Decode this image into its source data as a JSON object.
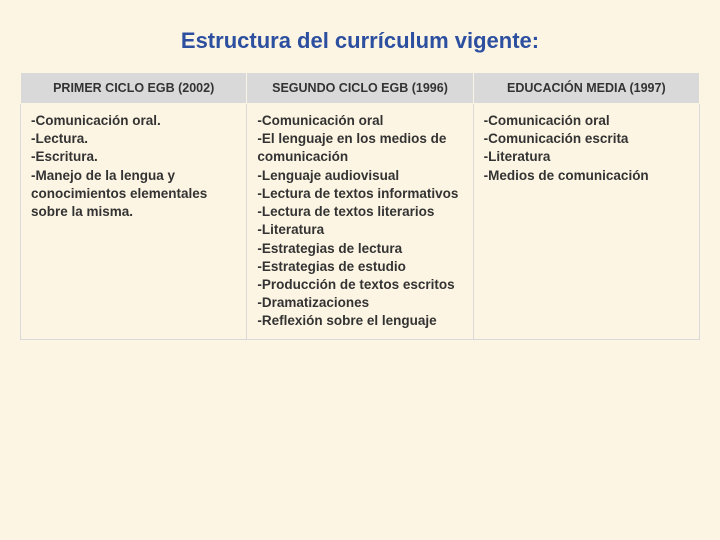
{
  "title": "Estructura del currículum vigente:",
  "table": {
    "type": "table",
    "background_color": "#fdf5e3",
    "header_bg": "#d9d9d9",
    "header_text_color": "#333333",
    "cell_text_color": "#333333",
    "border_color": "#d9d9d9",
    "title_color": "#2d4fa0",
    "title_fontsize": 22,
    "header_fontsize": 12.5,
    "cell_fontsize": 13.5,
    "columns": [
      "PRIMER CICLO EGB (2002)",
      "SEGUNDO CICLO EGB (1996)",
      "EDUCACIÓN MEDIA (1997)"
    ],
    "rows": [
      [
        "-Comunicación oral.\n-Lectura.\n-Escritura.\n-Manejo  de la lengua y conocimientos elementales sobre la misma.",
        "-Comunicación oral\n-El lenguaje en los medios de comunicación\n-Lenguaje audiovisual\n-Lectura de textos informativos\n-Lectura de textos literarios\n-Literatura\n-Estrategias de lectura\n-Estrategias de  estudio\n-Producción de textos escritos\n-Dramatizaciones\n-Reflexión sobre el lenguaje",
        "-Comunicación oral\n-Comunicación escrita\n-Literatura\n-Medios de  comunicación"
      ]
    ]
  }
}
